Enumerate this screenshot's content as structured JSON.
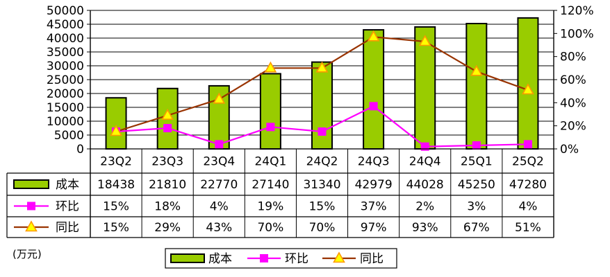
{
  "unit_label": "(万元)",
  "chart_data": {
    "type": "bar",
    "categories": [
      "23Q2",
      "23Q3",
      "23Q4",
      "24Q1",
      "24Q2",
      "24Q3",
      "24Q4",
      "25Q1",
      "25Q2"
    ],
    "series": [
      {
        "name": "成本",
        "type": "bar",
        "axis": "left",
        "color": "#99cc00",
        "values": [
          18438,
          21810,
          22770,
          27140,
          31340,
          42979,
          44028,
          45250,
          47280
        ],
        "labels": [
          "18438",
          "21810",
          "22770",
          "27140",
          "31340",
          "42979",
          "44028",
          "45250",
          "47280"
        ]
      },
      {
        "name": "环比",
        "type": "line",
        "axis": "right",
        "color": "#ff00ff",
        "marker": "square",
        "values": [
          15,
          18,
          4,
          19,
          15,
          37,
          2,
          3,
          4
        ],
        "labels": [
          "15%",
          "18%",
          "4%",
          "19%",
          "15%",
          "37%",
          "2%",
          "3%",
          "4%"
        ]
      },
      {
        "name": "同比",
        "type": "line",
        "axis": "right",
        "color": "#993300",
        "marker": "triangle",
        "marker_fill": "#ffff00",
        "marker_stroke": "#ff9900",
        "values": [
          15,
          29,
          43,
          70,
          70,
          97,
          93,
          67,
          51
        ],
        "labels": [
          "15%",
          "29%",
          "43%",
          "70%",
          "70%",
          "97%",
          "93%",
          "67%",
          "51%"
        ]
      }
    ],
    "y_left": {
      "min": 0,
      "max": 50000,
      "step": 5000,
      "ticks": [
        "0",
        "5000",
        "10000",
        "15000",
        "20000",
        "25000",
        "30000",
        "35000",
        "40000",
        "45000",
        "50000"
      ]
    },
    "y_right": {
      "min": 0,
      "max": 120,
      "step": 20,
      "ticks": [
        "0%",
        "20%",
        "40%",
        "60%",
        "80%",
        "100%",
        "120%"
      ]
    },
    "grid": true,
    "legend_position": "bottom",
    "data_table": true
  }
}
